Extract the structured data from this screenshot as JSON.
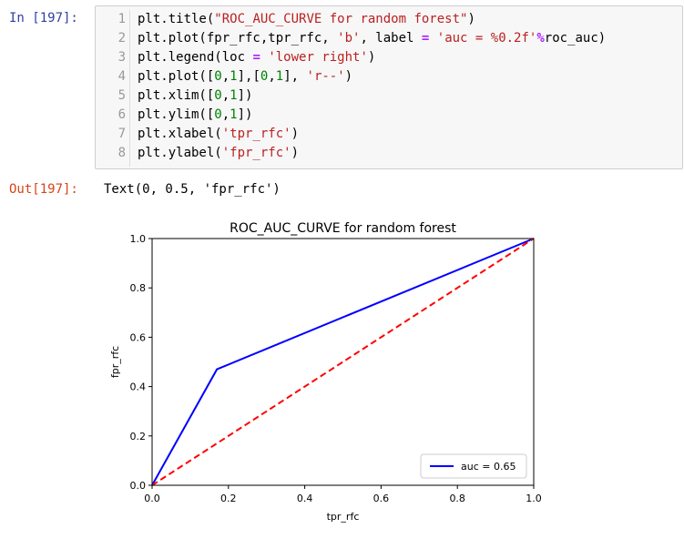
{
  "cell": {
    "in_prompt": "In [197]:",
    "out_prompt": "Out[197]:",
    "line_numbers": [
      "1",
      "2",
      "3",
      "4",
      "5",
      "6",
      "7",
      "8"
    ],
    "code_lines": [
      [
        {
          "t": "plt.title(",
          "c": ""
        },
        {
          "t": "\"ROC_AUC_CURVE for random forest\"",
          "c": "str"
        },
        {
          "t": ")",
          "c": ""
        }
      ],
      [
        {
          "t": "plt.plot(fpr_rfc,tpr_rfc, ",
          "c": ""
        },
        {
          "t": "'b'",
          "c": "str"
        },
        {
          "t": ", label ",
          "c": ""
        },
        {
          "t": "=",
          "c": "op"
        },
        {
          "t": " ",
          "c": ""
        },
        {
          "t": "'auc = %0.2f'",
          "c": "str"
        },
        {
          "t": "%",
          "c": "op"
        },
        {
          "t": "roc_auc)",
          "c": ""
        }
      ],
      [
        {
          "t": "plt.legend(loc ",
          "c": ""
        },
        {
          "t": "=",
          "c": "op"
        },
        {
          "t": " ",
          "c": ""
        },
        {
          "t": "'lower right'",
          "c": "str"
        },
        {
          "t": ")",
          "c": ""
        }
      ],
      [
        {
          "t": "plt.plot([",
          "c": ""
        },
        {
          "t": "0",
          "c": "num"
        },
        {
          "t": ",",
          "c": ""
        },
        {
          "t": "1",
          "c": "num"
        },
        {
          "t": "],[",
          "c": ""
        },
        {
          "t": "0",
          "c": "num"
        },
        {
          "t": ",",
          "c": ""
        },
        {
          "t": "1",
          "c": "num"
        },
        {
          "t": "], ",
          "c": ""
        },
        {
          "t": "'r--'",
          "c": "str"
        },
        {
          "t": ")",
          "c": ""
        }
      ],
      [
        {
          "t": "plt.xlim([",
          "c": ""
        },
        {
          "t": "0",
          "c": "num"
        },
        {
          "t": ",",
          "c": ""
        },
        {
          "t": "1",
          "c": "num"
        },
        {
          "t": "])",
          "c": ""
        }
      ],
      [
        {
          "t": "plt.ylim([",
          "c": ""
        },
        {
          "t": "0",
          "c": "num"
        },
        {
          "t": ",",
          "c": ""
        },
        {
          "t": "1",
          "c": "num"
        },
        {
          "t": "])",
          "c": ""
        }
      ],
      [
        {
          "t": "plt.xlabel(",
          "c": ""
        },
        {
          "t": "'tpr_rfc'",
          "c": "str"
        },
        {
          "t": ")",
          "c": ""
        }
      ],
      [
        {
          "t": "plt.ylabel(",
          "c": ""
        },
        {
          "t": "'fpr_rfc'",
          "c": "str"
        },
        {
          "t": ")",
          "c": ""
        }
      ]
    ],
    "output_text": "Text(0, 0.5, 'fpr_rfc')"
  },
  "colors": {
    "in_prompt": "#303f9f",
    "out_prompt": "#d84315",
    "roc_line": "#0000ff",
    "diagonal_line": "#ff0000"
  },
  "chart_data": {
    "type": "line",
    "title": "ROC_AUC_CURVE for random forest",
    "xlabel": "tpr_rfc",
    "ylabel": "fpr_rfc",
    "xlim": [
      0,
      1
    ],
    "ylim": [
      0,
      1
    ],
    "x_ticks": [
      "0.0",
      "0.2",
      "0.4",
      "0.6",
      "0.8",
      "1.0"
    ],
    "y_ticks": [
      "0.0",
      "0.2",
      "0.4",
      "0.6",
      "0.8",
      "1.0"
    ],
    "grid": false,
    "legend_placement": "lower right",
    "series": [
      {
        "name": "auc = 0.65",
        "color": "#0000ff",
        "style": "solid",
        "x": [
          0.0,
          0.17,
          1.0
        ],
        "y": [
          0.0,
          0.47,
          1.0
        ]
      },
      {
        "color": "#ff0000",
        "style": "dashed",
        "x": [
          0,
          1
        ],
        "y": [
          0,
          1
        ]
      }
    ]
  }
}
